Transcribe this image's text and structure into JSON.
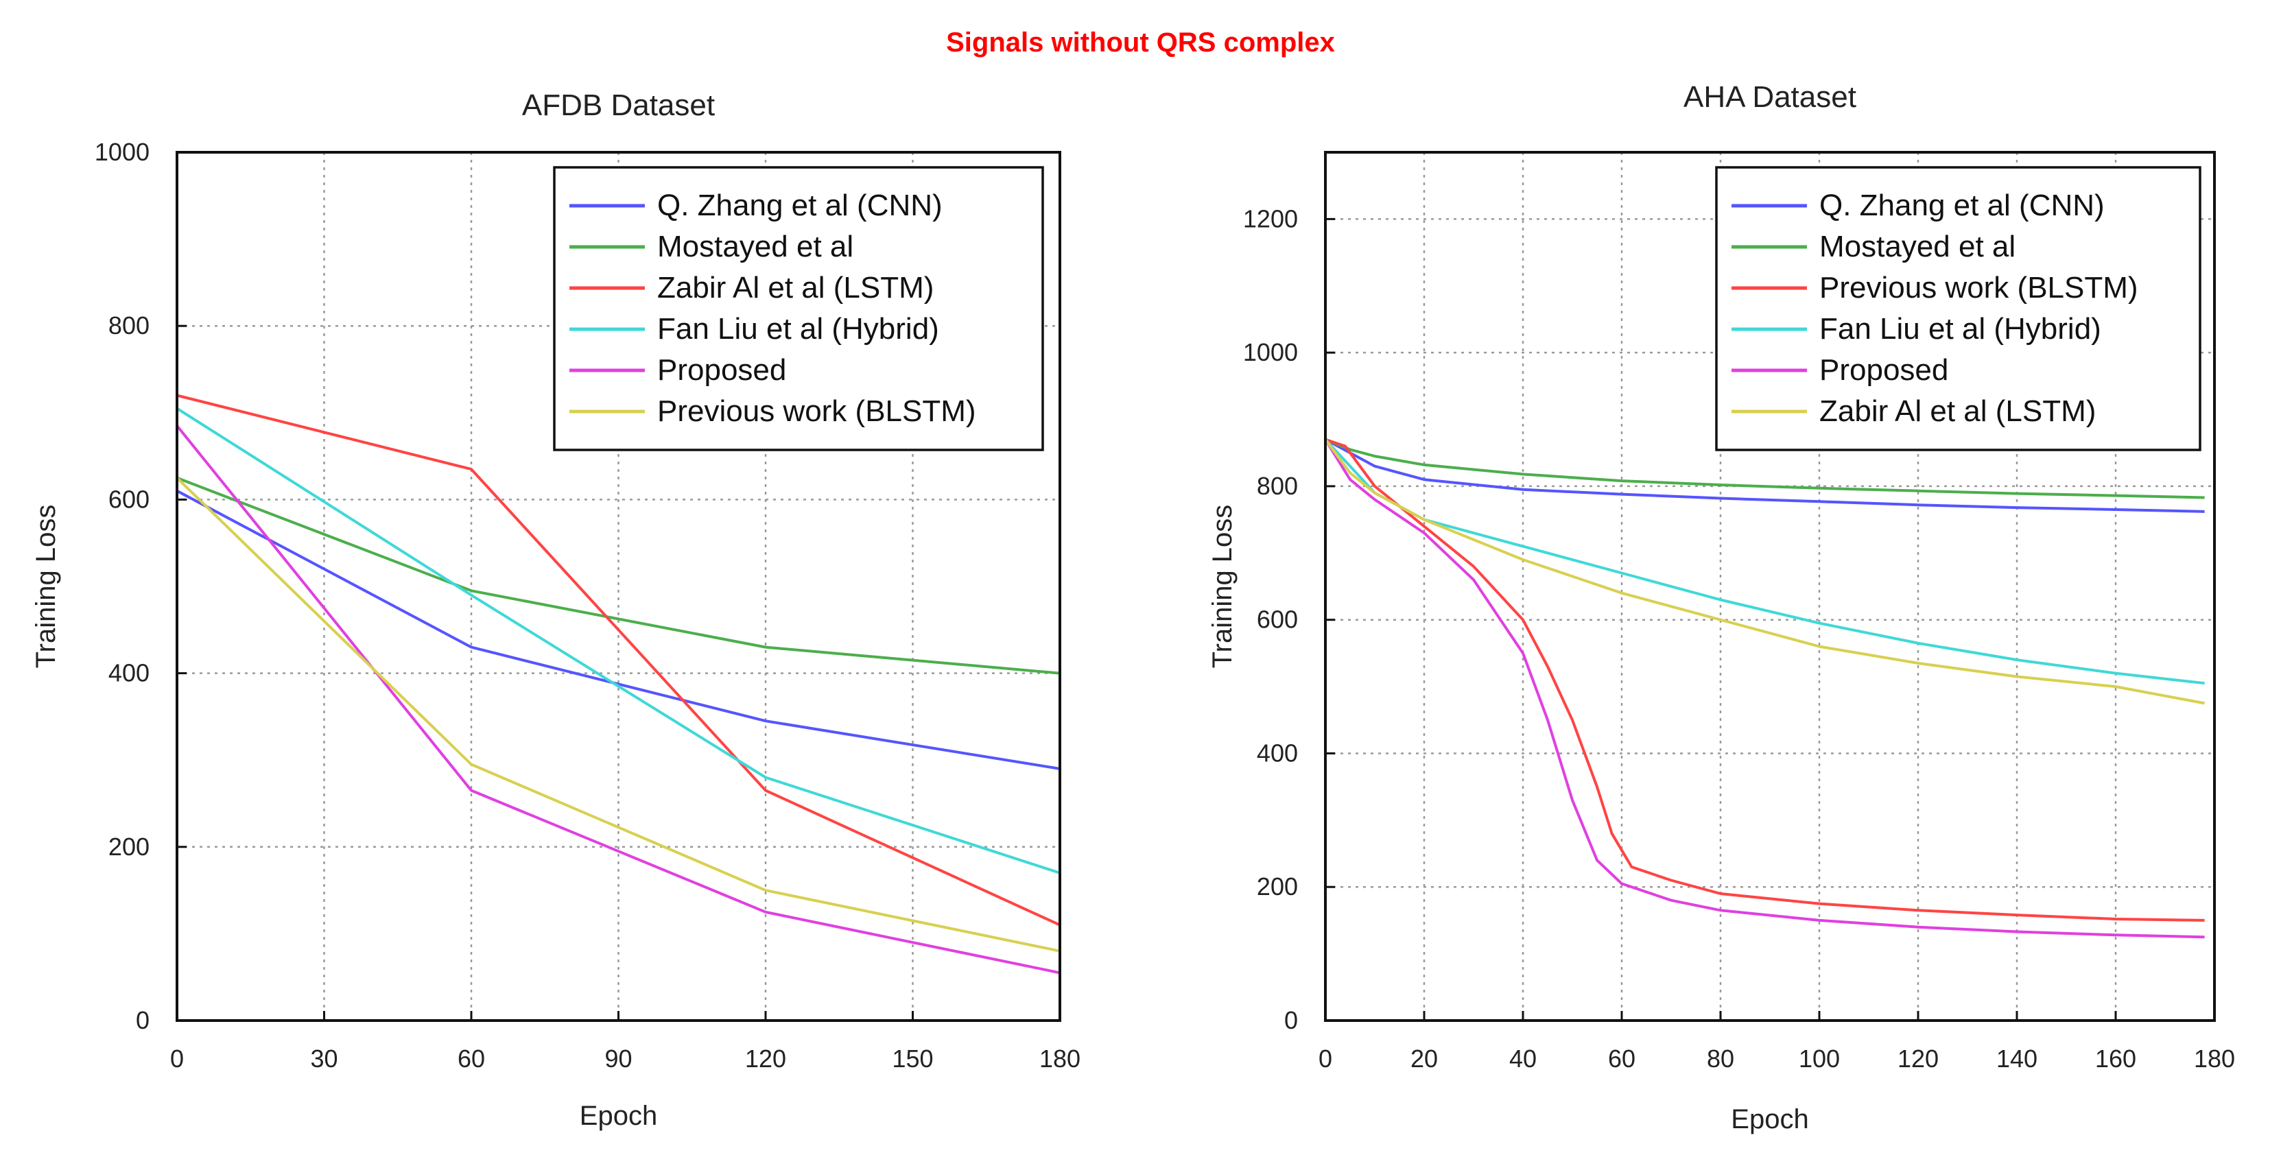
{
  "figure_title": "Signals without QRS complex",
  "chart_data": [
    {
      "type": "line",
      "title": "AFDB Dataset",
      "xlabel": "Epoch",
      "ylabel": "Training Loss",
      "xlim": [
        0,
        180
      ],
      "ylim": [
        0,
        1000
      ],
      "xticks": [
        0,
        30,
        60,
        90,
        120,
        150,
        180
      ],
      "yticks": [
        0,
        200,
        400,
        600,
        800,
        1000
      ],
      "grid": true,
      "legend_position": "top-right",
      "series": [
        {
          "name": "Q. Zhang et al (CNN)",
          "color": "#5555ff",
          "x": [
            0,
            60,
            120,
            180
          ],
          "y": [
            610,
            430,
            345,
            290
          ]
        },
        {
          "name": "Mostayed et al",
          "color": "#4cae4c",
          "x": [
            0,
            60,
            120,
            180
          ],
          "y": [
            625,
            495,
            430,
            400
          ]
        },
        {
          "name": "Zabir Al et al (LSTM)",
          "color": "#ff4444",
          "x": [
            0,
            60,
            120,
            180
          ],
          "y": [
            720,
            635,
            265,
            110
          ]
        },
        {
          "name": "Fan Liu et al (Hybrid)",
          "color": "#40d8d8",
          "x": [
            0,
            60,
            120,
            180
          ],
          "y": [
            705,
            490,
            280,
            170
          ]
        },
        {
          "name": "Proposed",
          "color": "#e040e0",
          "x": [
            0,
            60,
            120,
            180
          ],
          "y": [
            685,
            265,
            125,
            55
          ]
        },
        {
          "name": "Previous work (BLSTM)",
          "color": "#d8d050",
          "x": [
            0,
            60,
            120,
            180
          ],
          "y": [
            625,
            295,
            150,
            80
          ]
        }
      ]
    },
    {
      "type": "line",
      "title": "AHA Dataset",
      "xlabel": "Epoch",
      "ylabel": "Training Loss",
      "xlim": [
        0,
        180
      ],
      "ylim": [
        0,
        1300
      ],
      "xticks": [
        0,
        20,
        40,
        60,
        80,
        100,
        120,
        140,
        160,
        180
      ],
      "yticks": [
        0,
        200,
        400,
        600,
        800,
        1000,
        1200
      ],
      "grid": true,
      "legend_position": "top-right",
      "series": [
        {
          "name": "Q. Zhang et al (CNN)",
          "color": "#5555ff",
          "x": [
            0,
            5,
            10,
            20,
            40,
            60,
            80,
            100,
            120,
            140,
            160,
            178
          ],
          "y": [
            870,
            850,
            830,
            810,
            795,
            788,
            782,
            777,
            772,
            768,
            765,
            762
          ]
        },
        {
          "name": "Mostayed et al",
          "color": "#4cae4c",
          "x": [
            0,
            5,
            10,
            20,
            40,
            60,
            80,
            100,
            120,
            140,
            160,
            178
          ],
          "y": [
            870,
            855,
            845,
            832,
            818,
            808,
            802,
            797,
            793,
            789,
            786,
            783
          ]
        },
        {
          "name": "Previous work (BLSTM)",
          "color": "#ff4444",
          "x": [
            0,
            4,
            6,
            10,
            20,
            30,
            40,
            45,
            50,
            55,
            58,
            62,
            70,
            80,
            100,
            120,
            140,
            160,
            178
          ],
          "y": [
            870,
            860,
            840,
            800,
            740,
            680,
            600,
            530,
            450,
            350,
            280,
            230,
            210,
            190,
            175,
            165,
            158,
            152,
            150
          ]
        },
        {
          "name": "Fan Liu et al (Hybrid)",
          "color": "#40d8d8",
          "x": [
            0,
            5,
            10,
            20,
            40,
            60,
            80,
            100,
            120,
            140,
            160,
            178
          ],
          "y": [
            870,
            830,
            790,
            750,
            710,
            670,
            630,
            595,
            565,
            540,
            520,
            505
          ]
        },
        {
          "name": "Proposed",
          "color": "#e040e0",
          "x": [
            0,
            5,
            10,
            20,
            30,
            40,
            45,
            50,
            55,
            60,
            70,
            80,
            100,
            120,
            140,
            160,
            178
          ],
          "y": [
            870,
            810,
            780,
            730,
            660,
            550,
            450,
            330,
            240,
            205,
            180,
            165,
            150,
            140,
            133,
            128,
            125
          ]
        },
        {
          "name": "Zabir Al et al (LSTM)",
          "color": "#d8d050",
          "x": [
            0,
            5,
            10,
            20,
            40,
            60,
            80,
            100,
            120,
            140,
            160,
            178
          ],
          "y": [
            870,
            820,
            790,
            750,
            690,
            640,
            600,
            560,
            535,
            515,
            500,
            475
          ]
        }
      ]
    }
  ]
}
